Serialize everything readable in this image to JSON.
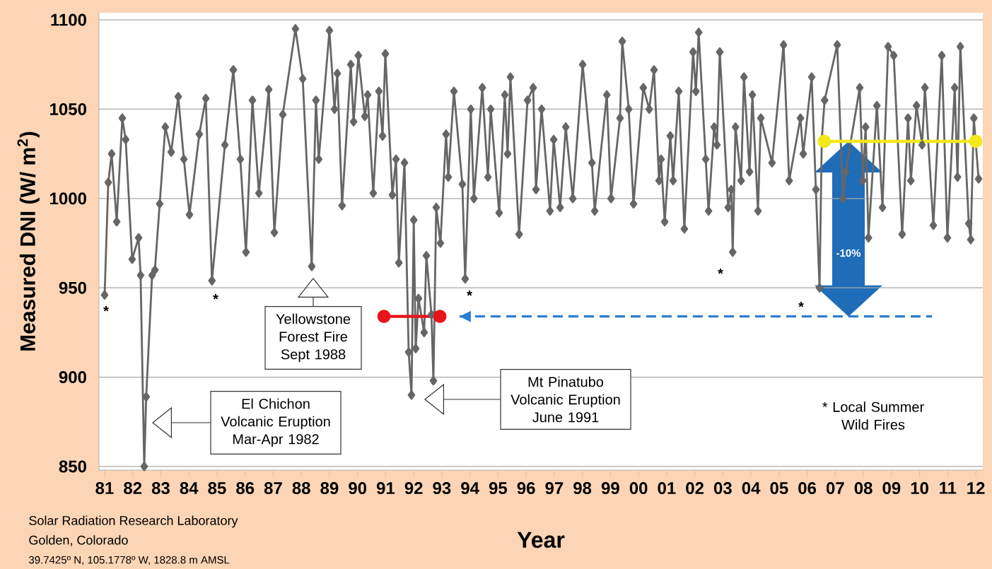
{
  "chart_data": {
    "type": "line",
    "xlabel": "Year",
    "ylabel": "Measured DNI (W/ m$^{2}$)",
    "xlim": [
      1980.8,
      2012.25
    ],
    "ylim": [
      848,
      1104
    ],
    "xticks": [
      {
        "value": 1981,
        "label": "81"
      },
      {
        "value": 1982,
        "label": "82"
      },
      {
        "value": 1983,
        "label": "83"
      },
      {
        "value": 1984,
        "label": "84"
      },
      {
        "value": 1985,
        "label": "85"
      },
      {
        "value": 1986,
        "label": "86"
      },
      {
        "value": 1987,
        "label": "87"
      },
      {
        "value": 1988,
        "label": "88"
      },
      {
        "value": 1989,
        "label": "89"
      },
      {
        "value": 1990,
        "label": "90"
      },
      {
        "value": 1991,
        "label": "91"
      },
      {
        "value": 1992,
        "label": "92"
      },
      {
        "value": 1993,
        "label": "93"
      },
      {
        "value": 1994,
        "label": "94"
      },
      {
        "value": 1995,
        "label": "95"
      },
      {
        "value": 1996,
        "label": "96"
      },
      {
        "value": 1997,
        "label": "97"
      },
      {
        "value": 1998,
        "label": "98"
      },
      {
        "value": 1999,
        "label": "99"
      },
      {
        "value": 2000,
        "label": "00"
      },
      {
        "value": 2001,
        "label": "01"
      },
      {
        "value": 2002,
        "label": "02"
      },
      {
        "value": 2003,
        "label": "03"
      },
      {
        "value": 2004,
        "label": "04"
      },
      {
        "value": 2005,
        "label": "05"
      },
      {
        "value": 2006,
        "label": "06"
      },
      {
        "value": 2007,
        "label": "07"
      },
      {
        "value": 2008,
        "label": "08"
      },
      {
        "value": 2009,
        "label": "09"
      },
      {
        "value": 2010,
        "label": "10"
      },
      {
        "value": 2011,
        "label": "11"
      },
      {
        "value": 2012,
        "label": "12"
      }
    ],
    "yticks": [
      850,
      900,
      950,
      1000,
      1050,
      1100
    ],
    "grid": "y",
    "series": [
      {
        "color": "#666666",
        "marker": "diamond",
        "x": [
          1981.0,
          1981.13,
          1981.25,
          1981.43,
          1981.63,
          1981.75,
          1981.98,
          1982.21,
          1982.28,
          1982.41,
          1982.48,
          1982.69,
          1982.79,
          1982.96,
          1983.16,
          1983.37,
          1983.62,
          1983.82,
          1984.02,
          1984.37,
          1984.6,
          1984.82,
          1985.28,
          1985.58,
          1985.83,
          1986.03,
          1986.26,
          1986.49,
          1986.84,
          1987.04,
          1987.34,
          1987.79,
          1988.05,
          1988.37,
          1988.52,
          1988.62,
          1989.0,
          1989.18,
          1989.28,
          1989.45,
          1989.76,
          1989.86,
          1990.03,
          1990.26,
          1990.36,
          1990.56,
          1990.76,
          1990.89,
          1990.99,
          1991.24,
          1991.37,
          1991.47,
          1991.67,
          1991.82,
          1991.92,
          1992.0,
          1992.07,
          1992.17,
          1992.37,
          1992.45,
          1992.63,
          1992.7,
          1992.8,
          1992.95,
          1993.15,
          1993.23,
          1993.43,
          1993.73,
          1993.83,
          1994.03,
          1994.14,
          1994.44,
          1994.64,
          1994.74,
          1995.04,
          1995.24,
          1995.34,
          1995.44,
          1995.75,
          1996.05,
          1996.25,
          1996.35,
          1996.55,
          1996.85,
          1996.98,
          1997.21,
          1997.41,
          1997.66,
          1998.01,
          1998.34,
          1998.44,
          1998.87,
          1999.02,
          1999.34,
          1999.42,
          1999.65,
          1999.82,
          2000.17,
          2000.38,
          2000.55,
          2000.73,
          2000.8,
          2000.93,
          2001.13,
          2001.23,
          2001.43,
          2001.63,
          2001.94,
          2002.04,
          2002.14,
          2002.39,
          2002.49,
          2002.69,
          2002.79,
          2002.89,
          2003.19,
          2003.3,
          2003.35,
          2003.45,
          2003.65,
          2003.75,
          2003.95,
          2004.05,
          2004.25,
          2004.35,
          2004.75,
          2005.16,
          2005.36,
          2005.76,
          2005.86,
          2006.16,
          2006.31,
          2006.44,
          2006.52,
          2006.62,
          2007.07,
          2007.27,
          2007.37,
          2007.87,
          2007.98,
          2008.08,
          2008.18,
          2008.48,
          2008.68,
          2008.88,
          2009.08,
          2009.38,
          2009.59,
          2009.69,
          2009.89,
          2010.09,
          2010.19,
          2010.49,
          2010.79,
          2010.99,
          2011.25,
          2011.35,
          2011.45,
          2011.75,
          2011.82,
          2011.93,
          2012.1
        ],
        "values": [
          946,
          1009,
          1025,
          987,
          1045,
          1033,
          966,
          978,
          957,
          850,
          889,
          957,
          960,
          997,
          1040,
          1026,
          1057,
          1022,
          991,
          1036,
          1056,
          954,
          1030,
          1072,
          1022,
          970,
          1055,
          1003,
          1061,
          981,
          1047,
          1095,
          1067,
          962,
          1055,
          1022,
          1094,
          1050,
          1070,
          996,
          1075,
          1043,
          1080,
          1046,
          1058,
          1003,
          1060,
          1035,
          1081,
          1002,
          1022,
          964,
          1020,
          914,
          890,
          988,
          916,
          944,
          925,
          968,
          935,
          898,
          995,
          975,
          1036,
          1012,
          1060,
          1008,
          955,
          1050,
          1000,
          1062,
          1012,
          1050,
          992,
          1058,
          1025,
          1068,
          980,
          1055,
          1062,
          1005,
          1050,
          993,
          1033,
          995,
          1040,
          1000,
          1075,
          1020,
          993,
          1058,
          1000,
          1045,
          1088,
          1050,
          997,
          1062,
          1050,
          1072,
          1010,
          1022,
          987,
          1035,
          1010,
          1060,
          983,
          1082,
          1060,
          1093,
          1022,
          993,
          1040,
          1030,
          1082,
          995,
          1005,
          970,
          1040,
          1010,
          1068,
          1015,
          1058,
          993,
          1045,
          1020,
          1086,
          1010,
          1045,
          1025,
          1068,
          1005,
          950,
          1033,
          1055,
          1086,
          1000,
          1015,
          1062,
          1010,
          1040,
          978,
          1052,
          995,
          1085,
          1080,
          980,
          1045,
          1010,
          1052,
          1030,
          1062,
          985,
          1080,
          978,
          1062,
          1012,
          1085,
          986,
          977,
          1045,
          1011
        ]
      },
      {
        "color": "#e8141b",
        "marker": "circle",
        "x": [
          1990.94,
          1992.93
        ],
        "values": [
          934,
          934
        ]
      },
      {
        "color": "#f2e81a",
        "marker": "circle",
        "x": [
          2006.61,
          2012.0
        ],
        "values": [
          1032,
          1032
        ]
      },
      {
        "color": "#2b7fd0",
        "marker": "none",
        "line_style": "dashed",
        "x": [
          1993.63,
          2010.44
        ],
        "values": [
          934,
          934
        ]
      }
    ],
    "annotations": [
      "El Chichon Volcanic Eruption Mar-Apr 1982",
      "Yellowstone Forest Fire Sept 1988",
      "Mt Pinatubo Volcanic Eruption June 1991",
      "-10%",
      "*",
      "*",
      "*",
      "*",
      "*",
      "* Local Summer Wild Fires",
      "Solar Radiation Research Laboratory",
      "Golden, Colorado",
      "39.7425º N, 105.1778º W, 1828.8 m AMSL"
    ]
  }
}
